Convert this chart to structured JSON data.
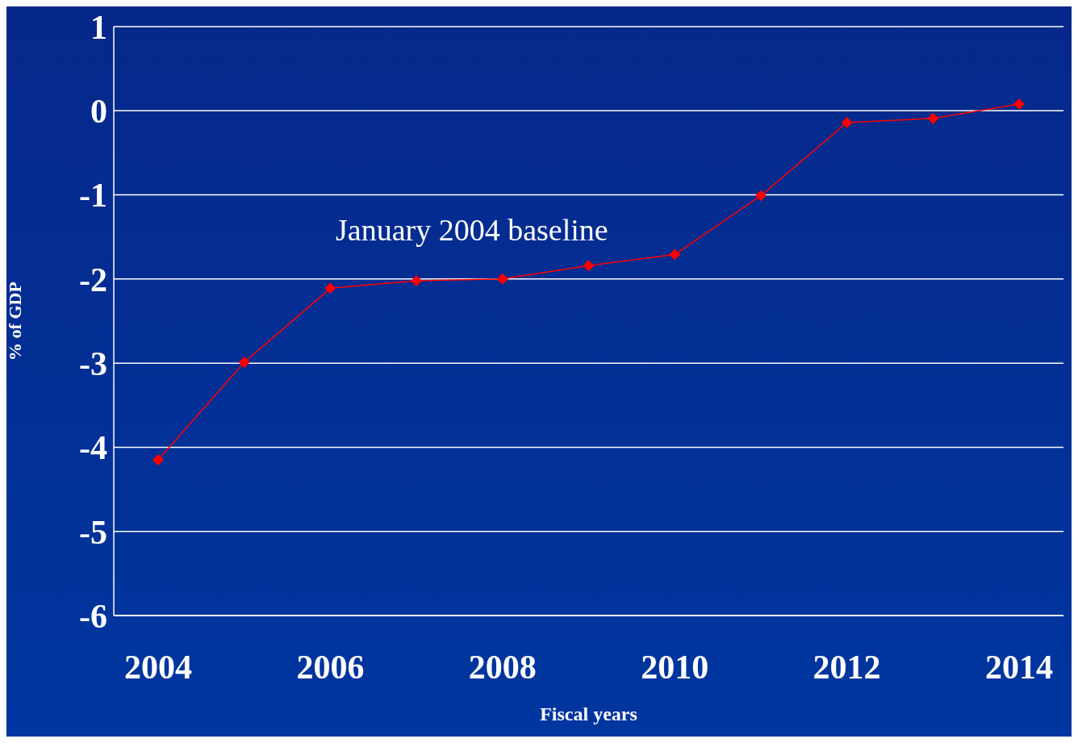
{
  "chart_data": {
    "type": "line",
    "xlabel": "Fiscal years",
    "ylabel": "% of GDP",
    "categories": [
      "2004",
      null,
      "2006",
      null,
      "2008",
      null,
      "2010",
      null,
      "2012",
      null,
      "2014"
    ],
    "series": [
      {
        "color": "#ff0000",
        "values": [
          -4.15,
          -2.99,
          -2.11,
          -2.02,
          -2.0,
          -1.84,
          -1.71,
          -1.01,
          -0.14,
          -0.09,
          0.08
        ]
      }
    ],
    "ylim": [
      -6,
      1
    ],
    "yticks": [
      -6,
      -5,
      -4,
      -3,
      -2,
      -1,
      0,
      1
    ],
    "grid": "y",
    "marker": "diamond",
    "line_style": "solid",
    "annotations": [
      "January 2004 baseline"
    ]
  }
}
